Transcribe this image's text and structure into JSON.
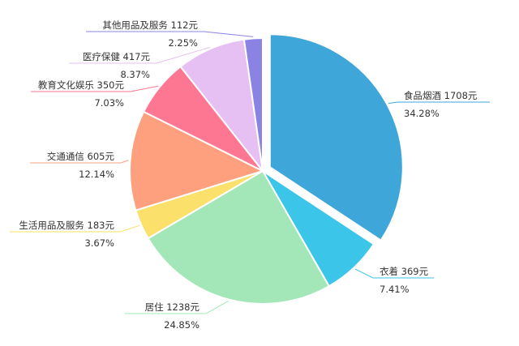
{
  "chart_data": {
    "type": "pie",
    "title": "",
    "slices": [
      {
        "label": "食品烟酒",
        "value": 1708,
        "value_text": "1708元",
        "percent_text": "34.28%",
        "color": "#3fa6d9",
        "exploded": true
      },
      {
        "label": "衣着",
        "value": 369,
        "value_text": "369元",
        "percent_text": "7.41%",
        "color": "#3bc5e8",
        "exploded": false
      },
      {
        "label": "居住",
        "value": 1238,
        "value_text": "1238元",
        "percent_text": "24.85%",
        "color": "#a3e6b7",
        "exploded": false
      },
      {
        "label": "生活用品及服务",
        "value": 183,
        "value_text": "183元",
        "percent_text": "3.67%",
        "color": "#fbe06c",
        "exploded": false
      },
      {
        "label": "交通通信",
        "value": 605,
        "value_text": "605元",
        "percent_text": "12.14%",
        "color": "#fea07e",
        "exploded": false
      },
      {
        "label": "教育文化娱乐",
        "value": 350,
        "value_text": "350元",
        "percent_text": "7.03%",
        "color": "#fd7793",
        "exploded": false
      },
      {
        "label": "医疗保健",
        "value": 417,
        "value_text": "417元",
        "percent_text": "8.37%",
        "color": "#e6c0f3",
        "exploded": false
      },
      {
        "label": "其他用品及服务",
        "value": 112,
        "value_text": "112元",
        "percent_text": "2.25%",
        "color": "#8b83e4",
        "exploded": false
      }
    ]
  }
}
